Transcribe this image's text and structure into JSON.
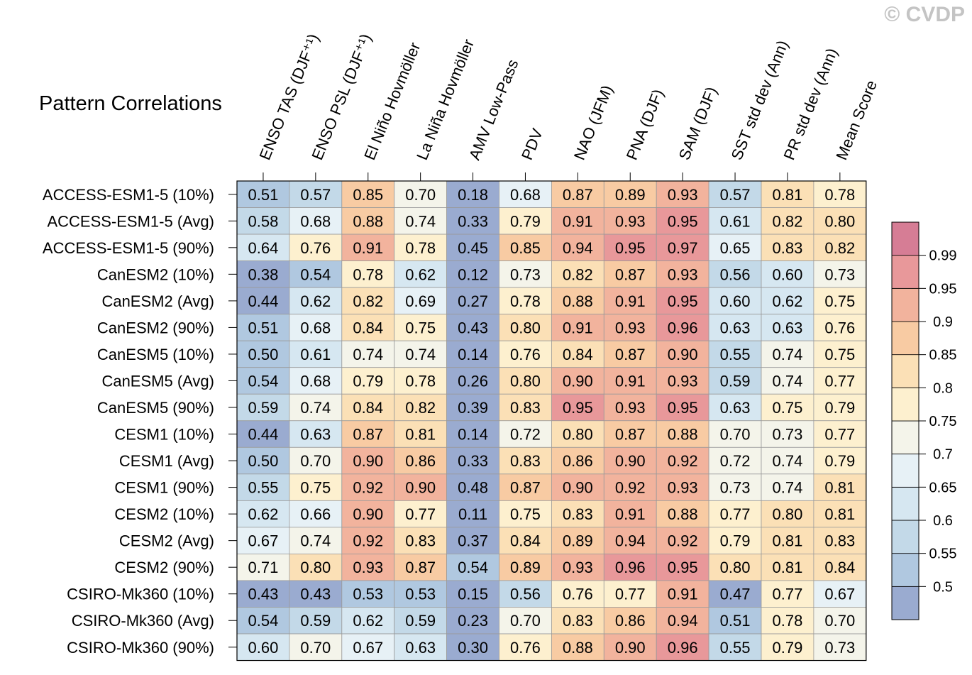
{
  "watermark": "© CVDP",
  "chart_data": {
    "type": "heatmap",
    "title": "Pattern Correlations",
    "columns": [
      "ENSO TAS (DJF⁺¹)",
      "ENSO PSL (DJF⁺¹)",
      "El Niño Hovmöller",
      "La Niña Hovmöller",
      "AMV Low-Pass",
      "PDV",
      "NAO (JFM)",
      "PNA (DJF)",
      "SAM (DJF)",
      "SST std dev (Ann)",
      "PR std dev (Ann)",
      "Mean Score"
    ],
    "rows": [
      "ACCESS-ESM1-5 (10%)",
      "ACCESS-ESM1-5 (Avg)",
      "ACCESS-ESM1-5 (90%)",
      "CanESM2 (10%)",
      "CanESM2 (Avg)",
      "CanESM2 (90%)",
      "CanESM5 (10%)",
      "CanESM5 (Avg)",
      "CanESM5 (90%)",
      "CESM1 (10%)",
      "CESM1 (Avg)",
      "CESM1 (90%)",
      "CESM2 (10%)",
      "CESM2 (Avg)",
      "CESM2 (90%)",
      "CSIRO-Mk360 (10%)",
      "CSIRO-Mk360 (Avg)",
      "CSIRO-Mk360 (90%)"
    ],
    "values": [
      [
        "0.51",
        "0.57",
        "0.85",
        "0.70",
        "0.18",
        "0.68",
        "0.87",
        "0.89",
        "0.93",
        "0.57",
        "0.81",
        "0.78"
      ],
      [
        "0.58",
        "0.68",
        "0.88",
        "0.74",
        "0.33",
        "0.79",
        "0.91",
        "0.93",
        "0.95",
        "0.61",
        "0.82",
        "0.80"
      ],
      [
        "0.64",
        "0.76",
        "0.91",
        "0.78",
        "0.45",
        "0.85",
        "0.94",
        "0.95",
        "0.97",
        "0.65",
        "0.83",
        "0.82"
      ],
      [
        "0.38",
        "0.54",
        "0.78",
        "0.62",
        "0.12",
        "0.73",
        "0.82",
        "0.87",
        "0.93",
        "0.56",
        "0.60",
        "0.73"
      ],
      [
        "0.44",
        "0.62",
        "0.82",
        "0.69",
        "0.27",
        "0.78",
        "0.88",
        "0.91",
        "0.95",
        "0.60",
        "0.62",
        "0.75"
      ],
      [
        "0.51",
        "0.68",
        "0.84",
        "0.75",
        "0.43",
        "0.80",
        "0.91",
        "0.93",
        "0.96",
        "0.63",
        "0.63",
        "0.76"
      ],
      [
        "0.50",
        "0.61",
        "0.74",
        "0.74",
        "0.14",
        "0.76",
        "0.84",
        "0.87",
        "0.90",
        "0.55",
        "0.74",
        "0.75"
      ],
      [
        "0.54",
        "0.68",
        "0.79",
        "0.78",
        "0.26",
        "0.80",
        "0.90",
        "0.91",
        "0.93",
        "0.59",
        "0.74",
        "0.77"
      ],
      [
        "0.59",
        "0.74",
        "0.84",
        "0.82",
        "0.39",
        "0.83",
        "0.95",
        "0.93",
        "0.95",
        "0.63",
        "0.75",
        "0.79"
      ],
      [
        "0.44",
        "0.63",
        "0.87",
        "0.81",
        "0.14",
        "0.72",
        "0.80",
        "0.87",
        "0.88",
        "0.70",
        "0.73",
        "0.77"
      ],
      [
        "0.50",
        "0.70",
        "0.90",
        "0.86",
        "0.33",
        "0.83",
        "0.86",
        "0.90",
        "0.92",
        "0.72",
        "0.74",
        "0.79"
      ],
      [
        "0.55",
        "0.75",
        "0.92",
        "0.90",
        "0.48",
        "0.87",
        "0.90",
        "0.92",
        "0.93",
        "0.73",
        "0.74",
        "0.81"
      ],
      [
        "0.62",
        "0.66",
        "0.90",
        "0.77",
        "0.11",
        "0.75",
        "0.83",
        "0.91",
        "0.88",
        "0.77",
        "0.80",
        "0.81"
      ],
      [
        "0.67",
        "0.74",
        "0.92",
        "0.83",
        "0.37",
        "0.84",
        "0.89",
        "0.94",
        "0.92",
        "0.79",
        "0.81",
        "0.83"
      ],
      [
        "0.71",
        "0.80",
        "0.93",
        "0.87",
        "0.54",
        "0.89",
        "0.93",
        "0.96",
        "0.95",
        "0.80",
        "0.81",
        "0.84"
      ],
      [
        "0.43",
        "0.43",
        "0.53",
        "0.53",
        "0.15",
        "0.56",
        "0.76",
        "0.77",
        "0.91",
        "0.47",
        "0.77",
        "0.67"
      ],
      [
        "0.54",
        "0.59",
        "0.62",
        "0.59",
        "0.23",
        "0.70",
        "0.83",
        "0.86",
        "0.94",
        "0.51",
        "0.78",
        "0.70"
      ],
      [
        "0.60",
        "0.70",
        "0.67",
        "0.63",
        "0.30",
        "0.76",
        "0.88",
        "0.90",
        "0.96",
        "0.55",
        "0.79",
        "0.73"
      ]
    ],
    "colorbar": {
      "labels": [
        "0.5",
        "0.55",
        "0.6",
        "0.65",
        "0.7",
        "0.75",
        "0.8",
        "0.85",
        "0.9",
        "0.95",
        "0.99"
      ],
      "thresholds": [
        0.5,
        0.55,
        0.6,
        0.65,
        0.7,
        0.75,
        0.8,
        0.85,
        0.9,
        0.95,
        0.99
      ],
      "colors": [
        "#9aabd0",
        "#b0c8e0",
        "#c3d9e8",
        "#d6e7f1",
        "#e7f1f6",
        "#f4f4ea",
        "#fdf0cf",
        "#fbe0b6",
        "#f8cba3",
        "#f2b39d",
        "#e8989a",
        "#d67d95"
      ]
    }
  }
}
